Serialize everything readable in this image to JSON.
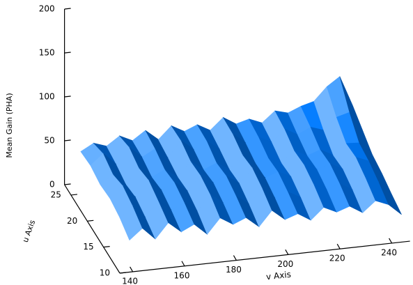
{
  "chart_data": {
    "type": "surface",
    "zlabel": "Mean Gain (PHA)",
    "ulabel": "u Axis",
    "vlabel": "v Axis",
    "zlim": [
      0,
      200
    ],
    "zticks": [
      0,
      50,
      100,
      150,
      200
    ],
    "ulim": [
      10,
      27
    ],
    "uticks": [
      10,
      15,
      20,
      25
    ],
    "vlim": [
      135,
      247
    ],
    "vticks": [
      140,
      160,
      180,
      200,
      220,
      240
    ],
    "color": "#1e8cff",
    "u": [
      11,
      14,
      17,
      20,
      23,
      26
    ],
    "v": [
      140,
      145,
      150,
      155,
      160,
      165,
      170,
      175,
      180,
      185,
      190,
      195,
      200,
      205,
      210,
      215,
      220,
      225,
      230,
      235,
      240,
      245
    ],
    "z": [
      [
        30,
        42,
        28,
        45,
        33,
        40,
        27,
        44,
        35,
        41,
        29,
        46,
        34,
        39,
        30,
        43,
        36,
        41,
        32,
        44,
        38,
        25
      ],
      [
        38,
        50,
        35,
        52,
        40,
        47,
        36,
        53,
        42,
        48,
        37,
        54,
        41,
        46,
        38,
        51,
        44,
        49,
        40,
        52,
        46,
        30
      ],
      [
        42,
        55,
        40,
        58,
        45,
        52,
        41,
        57,
        47,
        53,
        43,
        59,
        46,
        51,
        44,
        56,
        49,
        54,
        46,
        58,
        52,
        36
      ],
      [
        40,
        50,
        37,
        54,
        42,
        49,
        39,
        55,
        44,
        50,
        41,
        56,
        45,
        49,
        42,
        54,
        47,
        52,
        44,
        56,
        55,
        40
      ],
      [
        44,
        56,
        42,
        60,
        47,
        55,
        43,
        61,
        49,
        57,
        46,
        62,
        50,
        55,
        48,
        61,
        53,
        60,
        55,
        68,
        72,
        50
      ],
      [
        42,
        50,
        45,
        55,
        48,
        58,
        46,
        60,
        52,
        58,
        50,
        63,
        54,
        58,
        52,
        64,
        60,
        66,
        70,
        85,
        95,
        60
      ]
    ]
  }
}
